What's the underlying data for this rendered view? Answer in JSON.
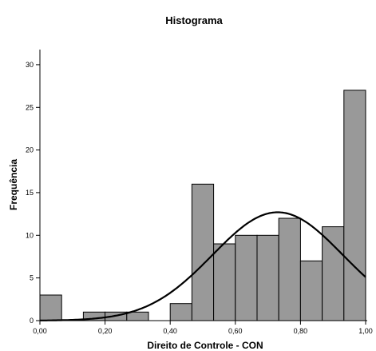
{
  "chart_data": {
    "type": "bar",
    "title": "Histograma",
    "xlabel": "Direito de Controle - CON",
    "ylabel": "Frequência",
    "xlim": [
      0.0,
      1.0
    ],
    "ylim": [
      0,
      32
    ],
    "x_ticks": [
      "0,00",
      "0,20",
      "0,40",
      "0,60",
      "0,80",
      "1,00"
    ],
    "y_ticks": [
      "0",
      "5",
      "10",
      "15",
      "20",
      "25",
      "30"
    ],
    "bin_width": 0.0667,
    "bins": [
      {
        "start": 0.0,
        "end": 0.0667,
        "value": 3
      },
      {
        "start": 0.0667,
        "end": 0.1333,
        "value": 0
      },
      {
        "start": 0.1333,
        "end": 0.2,
        "value": 1
      },
      {
        "start": 0.2,
        "end": 0.2667,
        "value": 1
      },
      {
        "start": 0.2667,
        "end": 0.3333,
        "value": 1
      },
      {
        "start": 0.3333,
        "end": 0.4,
        "value": 0
      },
      {
        "start": 0.4,
        "end": 0.4667,
        "value": 2
      },
      {
        "start": 0.4667,
        "end": 0.5333,
        "value": 16
      },
      {
        "start": 0.5333,
        "end": 0.6,
        "value": 9
      },
      {
        "start": 0.6,
        "end": 0.6667,
        "value": 10
      },
      {
        "start": 0.6667,
        "end": 0.7333,
        "value": 10
      },
      {
        "start": 0.7333,
        "end": 0.8,
        "value": 12
      },
      {
        "start": 0.8,
        "end": 0.8667,
        "value": 7
      },
      {
        "start": 0.8667,
        "end": 0.9333,
        "value": 11
      },
      {
        "start": 0.9333,
        "end": 1.0,
        "value": 27
      }
    ],
    "normal_curve": {
      "mean": 0.73,
      "std": 0.2,
      "peak": 12.7
    },
    "grid": false,
    "colors": {
      "bar_fill": "#999999",
      "bar_stroke": "#000000",
      "curve": "#000000"
    }
  }
}
